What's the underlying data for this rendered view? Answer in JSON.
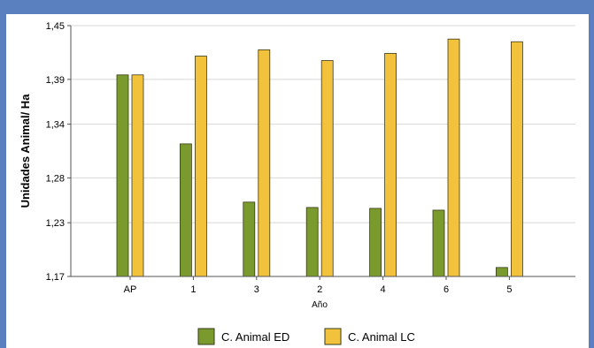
{
  "chart_data": {
    "type": "bar",
    "xlabel": "Año",
    "ylabel": "Unidades Animal/ Ha",
    "categories": [
      "AP",
      "1",
      "3",
      "2",
      "4",
      "6",
      "5"
    ],
    "series": [
      {
        "name": "C. Animal ED",
        "color": "#7a9a2e",
        "values": [
          1.395,
          1.318,
          1.253,
          1.247,
          1.246,
          1.244,
          1.18
        ]
      },
      {
        "name": "C. Animal LC",
        "color": "#f2c23c",
        "values": [
          1.395,
          1.416,
          1.423,
          1.411,
          1.419,
          1.435,
          1.432
        ]
      }
    ],
    "ylim": [
      1.17,
      1.45
    ],
    "yticks": [
      1.17,
      1.23,
      1.28,
      1.34,
      1.39,
      1.45
    ],
    "ytick_labels": [
      "1,17",
      "1,23",
      "1,28",
      "1,34",
      "1,39",
      "1,45"
    ],
    "grid": true,
    "legend_position": "bottom"
  }
}
